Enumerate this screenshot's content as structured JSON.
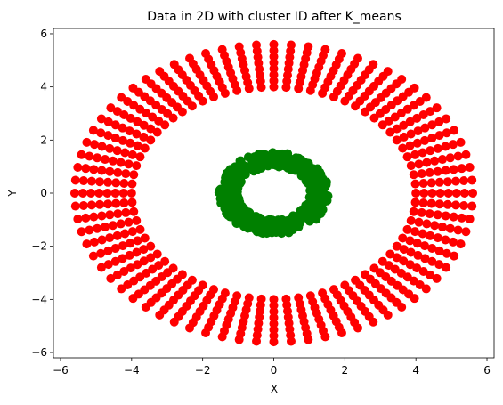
{
  "chart_data": {
    "type": "scatter",
    "title": "Data in 2D with cluster ID after K_means",
    "xlabel": "X",
    "ylabel": "Y",
    "xlim": [
      -6.2,
      6.2
    ],
    "ylim": [
      -6.2,
      6.2
    ],
    "xticks": [
      -6,
      -4,
      -2,
      0,
      2,
      4,
      6
    ],
    "yticks": [
      -6,
      -4,
      -2,
      0,
      2,
      4,
      6
    ],
    "grid": false,
    "legend": "none",
    "series": [
      {
        "cluster": 0,
        "color": "#ff0000",
        "shape": "ring",
        "center": [
          0,
          0
        ],
        "radius_min": 4.0,
        "radius_max": 5.6,
        "radial_points": 8,
        "angular_spokes": 72
      },
      {
        "cluster": 1,
        "color": "#008000",
        "shape": "ring",
        "center": [
          0,
          0
        ],
        "radius_min": 1.0,
        "radius_max": 1.55,
        "point_count": 600
      }
    ]
  }
}
